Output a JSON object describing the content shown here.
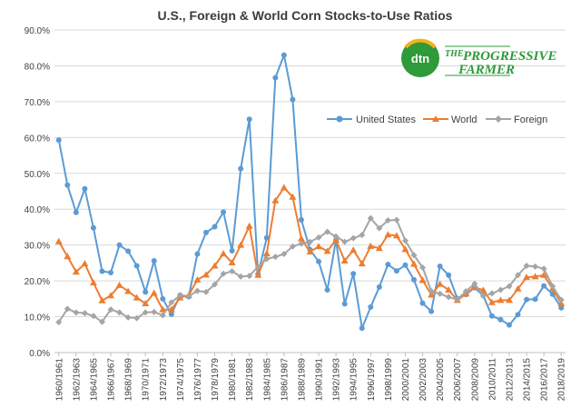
{
  "chart_data": {
    "type": "line",
    "title": "U.S., Foreign & World Corn Stocks-to-Use Ratios",
    "xlabel": "",
    "ylabel": "",
    "ylim": [
      0,
      90
    ],
    "y_ticks": [
      "0.0%",
      "10.0%",
      "20.0%",
      "30.0%",
      "40.0%",
      "50.0%",
      "60.0%",
      "70.0%",
      "80.0%",
      "90.0%"
    ],
    "grid": true,
    "legend_position": "right",
    "categories": [
      "1960/1961",
      "1961/1962",
      "1962/1963",
      "1963/1964",
      "1964/1965",
      "1965/1966",
      "1966/1967",
      "1967/1968",
      "1968/1969",
      "1969/1970",
      "1970/1971",
      "1971/1972",
      "1972/1973",
      "1973/1974",
      "1974/1975",
      "1975/1976",
      "1976/1977",
      "1977/1978",
      "1978/1979",
      "1979/1980",
      "1980/1981",
      "1981/1982",
      "1982/1983",
      "1983/1984",
      "1984/1985",
      "1985/1986",
      "1986/1987",
      "1987/1988",
      "1988/1989",
      "1989/1990",
      "1990/1991",
      "1991/1992",
      "1992/1993",
      "1993/1994",
      "1994/1995",
      "1995/1996",
      "1996/1997",
      "1997/1998",
      "1998/1999",
      "1999/2000",
      "2000/2001",
      "2001/2002",
      "2002/2003",
      "2003/2004",
      "2004/2005",
      "2005/2006",
      "2006/2007",
      "2007/2008",
      "2008/2009",
      "2009/2010",
      "2010/2011",
      "2011/2012",
      "2012/2013",
      "2013/2014",
      "2014/2015",
      "2015/2016",
      "2016/2017",
      "2017/2018",
      "2018/2019"
    ],
    "tick_labels": [
      "1960/1961",
      "1962/1963",
      "1964/1965",
      "1966/1967",
      "1968/1969",
      "1970/1971",
      "1972/1973",
      "1974/1975",
      "1976/1977",
      "1978/1979",
      "1980/1981",
      "1982/1983",
      "1984/1985",
      "1986/1987",
      "1988/1989",
      "1990/1991",
      "1992/1993",
      "1994/1995",
      "1996/1997",
      "1998/1999",
      "2000/2001",
      "2002/2003",
      "2004/2005",
      "2006/2007",
      "2008/2009",
      "2010/2011",
      "2012/2013",
      "2014/2015",
      "2016/2017",
      "2018/2019"
    ],
    "series": [
      {
        "name": "United States",
        "color": "#5b9bd5",
        "marker": "circle",
        "values": [
          59.3,
          46.7,
          39.1,
          45.7,
          34.8,
          22.7,
          22.3,
          30.0,
          28.3,
          24.2,
          16.9,
          25.6,
          15.0,
          10.7,
          16.0,
          15.6,
          27.5,
          33.5,
          35.1,
          39.2,
          28.4,
          51.3,
          65.1,
          21.9,
          32.0,
          76.7,
          83.0,
          70.6,
          37.0,
          28.7,
          25.4,
          17.5,
          31.4,
          13.6,
          22.0,
          6.8,
          12.7,
          18.3,
          24.6,
          22.8,
          24.4,
          20.3,
          13.8,
          11.5,
          24.1,
          21.6,
          15.1,
          16.2,
          18.1,
          15.9,
          10.2,
          9.2,
          7.7,
          10.6,
          14.8,
          14.9,
          18.6,
          16.3,
          12.5
        ]
      },
      {
        "name": "World",
        "color": "#ed7d31",
        "marker": "triangle",
        "values": [
          31.0,
          26.8,
          22.5,
          24.8,
          19.5,
          14.5,
          15.9,
          18.8,
          17.1,
          15.3,
          13.7,
          16.6,
          12.0,
          12.0,
          15.3,
          16.0,
          20.3,
          21.7,
          24.2,
          27.6,
          25.1,
          30.0,
          35.3,
          21.6,
          27.6,
          42.4,
          46.0,
          43.4,
          31.8,
          28.1,
          29.6,
          28.3,
          31.4,
          25.6,
          28.6,
          24.8,
          29.7,
          29.1,
          32.9,
          32.6,
          28.8,
          24.7,
          20.2,
          16.1,
          19.1,
          17.5,
          14.6,
          16.4,
          18.3,
          17.4,
          14.0,
          14.6,
          14.6,
          17.8,
          21.0,
          21.2,
          21.6,
          17.8,
          13.7
        ]
      },
      {
        "name": "Foreign",
        "color": "#a5a5a5",
        "marker": "diamond",
        "values": [
          8.5,
          12.2,
          11.2,
          11.0,
          10.2,
          8.6,
          12.0,
          11.2,
          9.8,
          9.6,
          11.2,
          11.3,
          10.4,
          14.0,
          16.0,
          15.8,
          17.2,
          16.9,
          19.0,
          22.0,
          22.7,
          21.2,
          21.4,
          23.9,
          26.1,
          26.7,
          27.5,
          29.6,
          30.4,
          30.9,
          32.1,
          33.7,
          32.4,
          30.9,
          31.9,
          32.8,
          37.5,
          34.7,
          36.9,
          37.0,
          31.2,
          27.2,
          23.7,
          17.1,
          16.4,
          15.5,
          14.8,
          17.1,
          19.2,
          15.8,
          16.5,
          17.5,
          18.5,
          21.6,
          24.2,
          24.0,
          23.4,
          18.5,
          14.7
        ]
      }
    ]
  },
  "logo": {
    "mark_text": "dtn",
    "line1": "THE",
    "line2": "PROGRESSIVE",
    "line3": "FARMER",
    "brand_color": "#2e9a3a",
    "accent_color": "#f3b21b"
  }
}
